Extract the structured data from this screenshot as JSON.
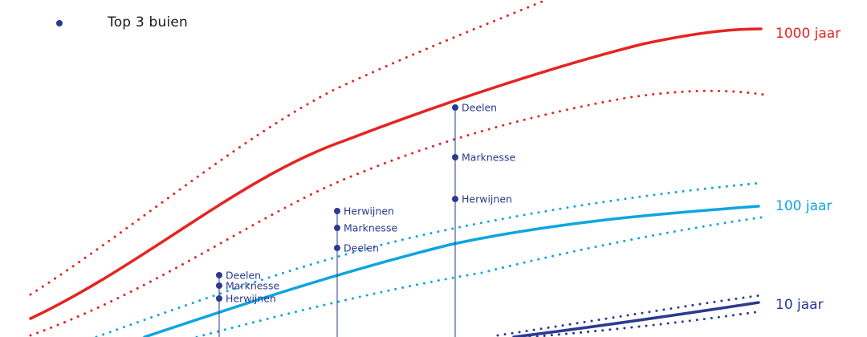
{
  "legend": {
    "label": "Top 3 buien",
    "color": "#2b3a8f"
  },
  "chart_data": {
    "type": "line",
    "colors": {
      "1000 jaar": "#e52421",
      "100 jaar": "#0ea5e0",
      "10 jaar": "#2b3a8f",
      "stations": "#2b3a8f"
    },
    "series": [
      {
        "name": "1000 jaar",
        "label": "1000 jaar",
        "color": "#e52421",
        "style": "solid"
      },
      {
        "name": "100 jaar",
        "label": "100 jaar",
        "color": "#0ea5e0",
        "style": "solid"
      },
      {
        "name": "10 jaar",
        "label": "10 jaar",
        "color": "#2b3a8f",
        "style": "solid"
      }
    ],
    "stations": [
      {
        "group": 1,
        "items": [
          "Deelen",
          "Marknesse",
          "Herwijnen"
        ]
      },
      {
        "group": 2,
        "items": [
          "Herwijnen",
          "Marknesse",
          "Deelen"
        ]
      },
      {
        "group": 3,
        "items": [
          "Deelen",
          "Marknesse",
          "Herwijnen"
        ]
      }
    ]
  }
}
